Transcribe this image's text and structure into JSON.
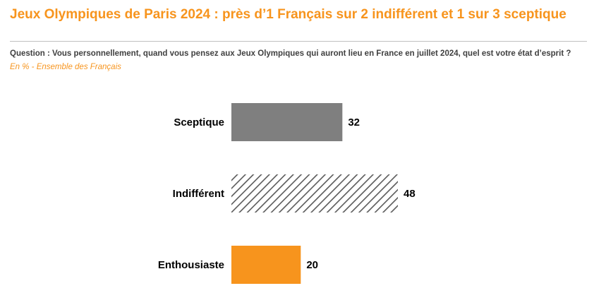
{
  "header": {
    "title": "Jeux Olympiques de Paris 2024 : près d’1 Français sur 2 indifférent et 1 sur 3 sceptique",
    "question": "Question : Vous personnellement, quand vous pensez aux Jeux Olympiques qui auront lieu en France en juillet 2024, quel est votre état d’esprit ?",
    "population": "En % - Ensemble des Français"
  },
  "colors": {
    "accent": "#F7941D",
    "sceptique_bar": "#7F7F7F",
    "hatch": "#595959",
    "question_text": "#404040"
  },
  "chart_data": {
    "type": "bar",
    "orientation": "horizontal",
    "unit": "%",
    "categories": [
      "Sceptique",
      "Indifférent",
      "Enthousiaste"
    ],
    "values": [
      32,
      48,
      20
    ],
    "fills": [
      "solid-gray",
      "hatched",
      "solid-orange"
    ],
    "xlim": [
      0,
      48
    ],
    "grid": false,
    "legend": "none"
  }
}
